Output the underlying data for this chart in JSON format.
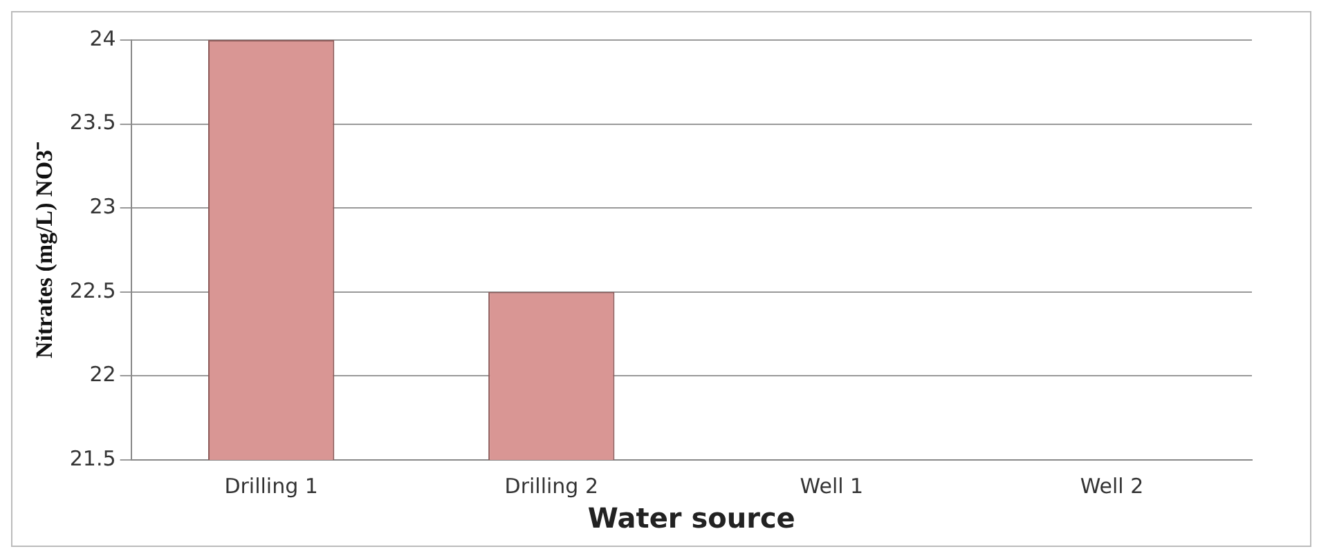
{
  "chart_data": {
    "type": "bar",
    "xlabel": "Water source",
    "ylabel": "Nitrates (mg/L) NO3⁻",
    "categories": [
      "Drilling 1",
      "Drilling 2",
      "Well 1",
      "Well 2"
    ],
    "values": [
      24,
      22.5,
      null,
      null
    ],
    "color": "#d99694",
    "ylim": [
      21.5,
      24
    ],
    "yticks": [
      21.5,
      22,
      22.5,
      23,
      23.5,
      24
    ],
    "grid": "y",
    "legend": false
  }
}
